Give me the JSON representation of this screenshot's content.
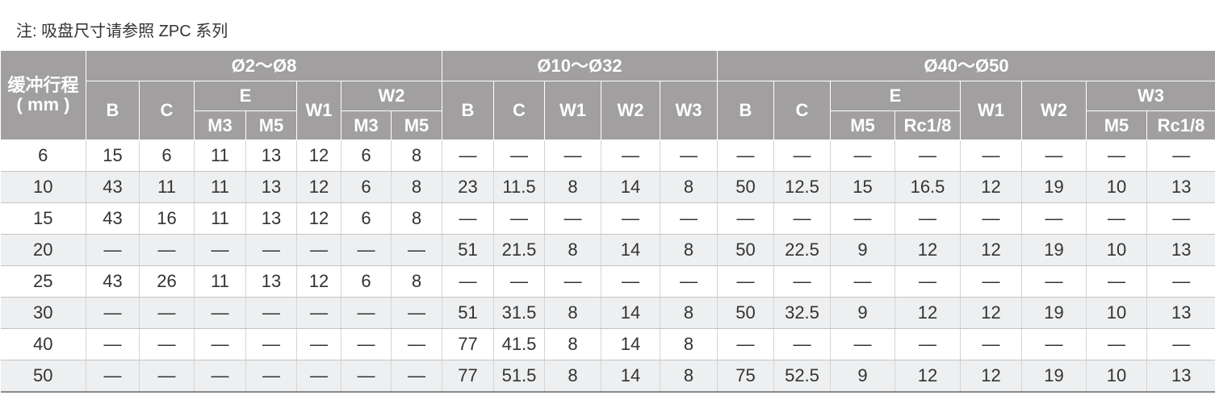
{
  "note": "注: 吸盘尺寸请参照 ZPC 系列",
  "table": {
    "row_label": [
      "缓冲行程",
      "( mm )"
    ],
    "groups": [
      {
        "label": "Ø2～Ø8",
        "columns": [
          {
            "label": "B"
          },
          {
            "label": "C"
          },
          {
            "label": "E",
            "sub": [
              "M3",
              "M5"
            ]
          },
          {
            "label": "W1"
          },
          {
            "label": "W2",
            "sub": [
              "M3",
              "M5"
            ]
          }
        ]
      },
      {
        "label": "Ø10～Ø32",
        "columns": [
          {
            "label": "B"
          },
          {
            "label": "C"
          },
          {
            "label": "W1"
          },
          {
            "label": "W2"
          },
          {
            "label": "W3"
          }
        ]
      },
      {
        "label": "Ø40～Ø50",
        "columns": [
          {
            "label": "B"
          },
          {
            "label": "C"
          },
          {
            "label": "E",
            "sub": [
              "M5",
              "Rc1/8"
            ]
          },
          {
            "label": "W1"
          },
          {
            "label": "W2"
          },
          {
            "label": "W3",
            "sub": [
              "M5",
              "Rc1/8"
            ]
          }
        ]
      }
    ],
    "rows": [
      [
        "6",
        "15",
        "6",
        "11",
        "13",
        "12",
        "6",
        "8",
        "—",
        "—",
        "—",
        "—",
        "—",
        "—",
        "—",
        "—",
        "—",
        "—",
        "—",
        "—",
        "—"
      ],
      [
        "10",
        "43",
        "11",
        "11",
        "13",
        "12",
        "6",
        "8",
        "23",
        "11.5",
        "8",
        "14",
        "8",
        "50",
        "12.5",
        "15",
        "16.5",
        "12",
        "19",
        "10",
        "13"
      ],
      [
        "15",
        "43",
        "16",
        "11",
        "13",
        "12",
        "6",
        "8",
        "—",
        "—",
        "—",
        "—",
        "—",
        "—",
        "—",
        "—",
        "—",
        "—",
        "—",
        "—",
        "—"
      ],
      [
        "20",
        "—",
        "—",
        "—",
        "—",
        "—",
        "—",
        "—",
        "51",
        "21.5",
        "8",
        "14",
        "8",
        "50",
        "22.5",
        "9",
        "12",
        "12",
        "19",
        "10",
        "13"
      ],
      [
        "25",
        "43",
        "26",
        "11",
        "13",
        "12",
        "6",
        "8",
        "—",
        "—",
        "—",
        "—",
        "—",
        "—",
        "—",
        "—",
        "—",
        "—",
        "—",
        "—",
        "—"
      ],
      [
        "30",
        "—",
        "—",
        "—",
        "—",
        "—",
        "—",
        "—",
        "51",
        "31.5",
        "8",
        "14",
        "8",
        "50",
        "32.5",
        "9",
        "12",
        "12",
        "19",
        "10",
        "13"
      ],
      [
        "40",
        "—",
        "—",
        "—",
        "—",
        "—",
        "—",
        "—",
        "77",
        "41.5",
        "8",
        "14",
        "8",
        "—",
        "—",
        "—",
        "—",
        "—",
        "—",
        "—",
        "—"
      ],
      [
        "50",
        "—",
        "—",
        "—",
        "—",
        "—",
        "—",
        "—",
        "77",
        "51.5",
        "8",
        "14",
        "8",
        "75",
        "52.5",
        "9",
        "12",
        "12",
        "19",
        "10",
        "13"
      ]
    ]
  }
}
